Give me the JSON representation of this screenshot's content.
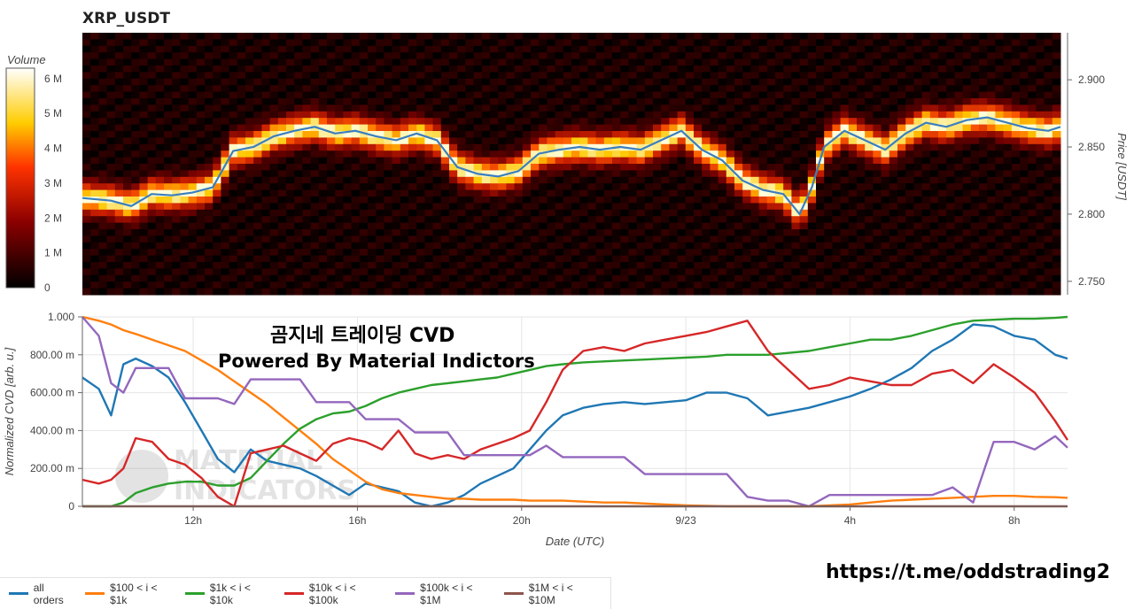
{
  "title": "XRP_USDT",
  "overlay": {
    "line1": "곰지네 트레이딩 CVD",
    "line2": "Powered By Material Indictors",
    "link": "https://t.me/oddstrading2"
  },
  "watermark": "MATERIAL INDICATORS",
  "colorbar": {
    "label": "Volume",
    "ticks": [
      "6 M",
      "5 M",
      "4 M",
      "3 M",
      "2 M",
      "1 M",
      "0"
    ],
    "tick_values": [
      6,
      5,
      4,
      3,
      2,
      1,
      0
    ]
  },
  "legend": [
    {
      "label": "all orders",
      "color": "#1f77b4"
    },
    {
      "label": "$100 < i < $1k",
      "color": "#ff7f0e"
    },
    {
      "label": "$1k < i < $10k",
      "color": "#2ca02c"
    },
    {
      "label": "$10k < i < $100k",
      "color": "#d62728"
    },
    {
      "label": "$100k < i < $1M",
      "color": "#9467bd"
    },
    {
      "label": "$1M < i < $10M",
      "color": "#8c564b"
    }
  ],
  "chart_data": [
    {
      "type": "heatmap",
      "title": "XRP_USDT",
      "ylabel": "Price [USDT]",
      "ylim": [
        2.74,
        2.935
      ],
      "yticks": [
        "2.900",
        "2.850",
        "2.800",
        "2.750"
      ],
      "ytick_values": [
        2.9,
        2.85,
        2.8,
        2.75
      ],
      "colorbar_label": "Volume",
      "colorbar_range_M": [
        0,
        6.3
      ],
      "price_series": {
        "x_hours": [
          9.3,
          10,
          10.5,
          11,
          11.5,
          12,
          12.5,
          13,
          13.5,
          14,
          14.5,
          15,
          15.5,
          16,
          16.5,
          17,
          17.5,
          18,
          18.5,
          19,
          19.5,
          20,
          20.5,
          21,
          21.5,
          22,
          22.5,
          23,
          23.5,
          24,
          24.5,
          25,
          25.5,
          26,
          26.5,
          26.9,
          27.2,
          27.5,
          28,
          28.5,
          29,
          29.5,
          30,
          30.5,
          31,
          31.5,
          32,
          32.5,
          33,
          33.3
        ],
        "y": [
          2.812,
          2.81,
          2.806,
          2.815,
          2.814,
          2.816,
          2.82,
          2.847,
          2.85,
          2.858,
          2.862,
          2.865,
          2.86,
          2.862,
          2.858,
          2.855,
          2.86,
          2.855,
          2.835,
          2.83,
          2.828,
          2.832,
          2.845,
          2.848,
          2.85,
          2.848,
          2.85,
          2.848,
          2.855,
          2.862,
          2.848,
          2.84,
          2.825,
          2.818,
          2.815,
          2.8,
          2.82,
          2.85,
          2.862,
          2.855,
          2.848,
          2.86,
          2.868,
          2.865,
          2.87,
          2.872,
          2.868,
          2.864,
          2.862,
          2.865
        ]
      }
    },
    {
      "type": "line",
      "xlabel": "Date (UTC)",
      "ylabel": "Normalized CVD [arb. u.]",
      "ylim": [
        0,
        1
      ],
      "xlim_hours": [
        9.3,
        33.3
      ],
      "xticks": [
        "12h",
        "16h",
        "20h",
        "9/23",
        "4h",
        "8h"
      ],
      "xtick_hours": [
        12,
        16,
        20,
        24,
        28,
        32
      ],
      "yticks": [
        "1.000",
        "800.00 m",
        "600.00 m",
        "400.00 m",
        "200.00 m",
        "0"
      ],
      "ytick_values": [
        1,
        0.8,
        0.6,
        0.4,
        0.2,
        0
      ],
      "x_hours": [
        9.3,
        9.7,
        10,
        10.3,
        10.6,
        11,
        11.4,
        11.8,
        12.2,
        12.6,
        13,
        13.4,
        13.8,
        14.2,
        14.6,
        15,
        15.4,
        15.8,
        16.2,
        16.6,
        17,
        17.4,
        17.8,
        18.2,
        18.6,
        19,
        19.4,
        19.8,
        20.2,
        20.6,
        21,
        21.5,
        22,
        22.5,
        23,
        23.5,
        24,
        24.5,
        25,
        25.5,
        26,
        26.5,
        27,
        27.5,
        28,
        28.5,
        29,
        29.5,
        30,
        30.5,
        31,
        31.5,
        32,
        32.5,
        33,
        33.3
      ],
      "series": [
        {
          "name": "all orders",
          "values": [
            0.68,
            0.62,
            0.48,
            0.75,
            0.78,
            0.74,
            0.68,
            0.55,
            0.4,
            0.25,
            0.18,
            0.3,
            0.24,
            0.22,
            0.2,
            0.16,
            0.11,
            0.06,
            0.12,
            0.1,
            0.08,
            0.02,
            0.0,
            0.02,
            0.06,
            0.12,
            0.16,
            0.2,
            0.3,
            0.4,
            0.48,
            0.52,
            0.54,
            0.55,
            0.54,
            0.55,
            0.56,
            0.6,
            0.6,
            0.57,
            0.48,
            0.5,
            0.52,
            0.55,
            0.58,
            0.62,
            0.67,
            0.73,
            0.82,
            0.88,
            0.96,
            0.95,
            0.9,
            0.88,
            0.8,
            0.78
          ]
        },
        {
          "name": "$100 < i < $1k",
          "values": [
            1.0,
            0.98,
            0.96,
            0.93,
            0.91,
            0.88,
            0.85,
            0.82,
            0.77,
            0.72,
            0.66,
            0.6,
            0.54,
            0.47,
            0.4,
            0.33,
            0.25,
            0.19,
            0.13,
            0.09,
            0.07,
            0.06,
            0.05,
            0.04,
            0.04,
            0.035,
            0.035,
            0.035,
            0.03,
            0.03,
            0.03,
            0.025,
            0.02,
            0.02,
            0.015,
            0.01,
            0.005,
            0.003,
            0.0,
            0.0,
            0.0,
            0.0,
            0.0,
            0.005,
            0.01,
            0.02,
            0.03,
            0.035,
            0.04,
            0.045,
            0.05,
            0.055,
            0.055,
            0.05,
            0.048,
            0.045
          ]
        },
        {
          "name": "$1k < i < $10k",
          "values": [
            0.0,
            0.0,
            0.0,
            0.02,
            0.07,
            0.1,
            0.12,
            0.13,
            0.13,
            0.11,
            0.11,
            0.15,
            0.24,
            0.33,
            0.41,
            0.46,
            0.49,
            0.5,
            0.53,
            0.57,
            0.6,
            0.62,
            0.64,
            0.65,
            0.66,
            0.67,
            0.68,
            0.7,
            0.72,
            0.74,
            0.75,
            0.76,
            0.765,
            0.77,
            0.775,
            0.78,
            0.785,
            0.79,
            0.8,
            0.8,
            0.8,
            0.81,
            0.82,
            0.84,
            0.86,
            0.88,
            0.88,
            0.9,
            0.93,
            0.96,
            0.98,
            0.985,
            0.99,
            0.99,
            0.995,
            1.0
          ]
        },
        {
          "name": "$10k < i < $100k",
          "values": [
            0.14,
            0.12,
            0.14,
            0.2,
            0.36,
            0.34,
            0.25,
            0.22,
            0.15,
            0.05,
            0.0,
            0.28,
            0.3,
            0.32,
            0.28,
            0.24,
            0.33,
            0.36,
            0.34,
            0.3,
            0.4,
            0.28,
            0.25,
            0.27,
            0.25,
            0.3,
            0.33,
            0.36,
            0.4,
            0.55,
            0.72,
            0.82,
            0.84,
            0.82,
            0.86,
            0.88,
            0.9,
            0.92,
            0.95,
            0.98,
            0.82,
            0.72,
            0.62,
            0.64,
            0.68,
            0.66,
            0.64,
            0.64,
            0.7,
            0.72,
            0.65,
            0.75,
            0.68,
            0.6,
            0.45,
            0.35
          ]
        },
        {
          "name": "$100k < i < $1M",
          "values": [
            1.0,
            0.9,
            0.65,
            0.6,
            0.73,
            0.73,
            0.73,
            0.57,
            0.57,
            0.57,
            0.54,
            0.67,
            0.67,
            0.67,
            0.67,
            0.55,
            0.55,
            0.55,
            0.46,
            0.46,
            0.46,
            0.39,
            0.39,
            0.39,
            0.27,
            0.27,
            0.27,
            0.27,
            0.27,
            0.32,
            0.26,
            0.26,
            0.26,
            0.26,
            0.17,
            0.17,
            0.17,
            0.17,
            0.17,
            0.05,
            0.03,
            0.03,
            0.0,
            0.06,
            0.06,
            0.06,
            0.06,
            0.06,
            0.06,
            0.1,
            0.02,
            0.34,
            0.34,
            0.3,
            0.37,
            0.31
          ]
        },
        {
          "name": "$1M < i < $10M",
          "values": [
            0,
            0,
            0,
            0,
            0,
            0,
            0,
            0,
            0,
            0,
            0,
            0,
            0,
            0,
            0,
            0,
            0,
            0,
            0,
            0,
            0,
            0,
            0,
            0,
            0,
            0,
            0,
            0,
            0,
            0,
            0,
            0,
            0,
            0,
            0,
            0,
            0,
            0,
            0,
            0,
            0,
            0,
            0,
            0,
            0,
            0,
            0,
            0,
            0,
            0,
            0,
            0,
            0,
            0,
            0,
            0
          ]
        }
      ]
    }
  ]
}
